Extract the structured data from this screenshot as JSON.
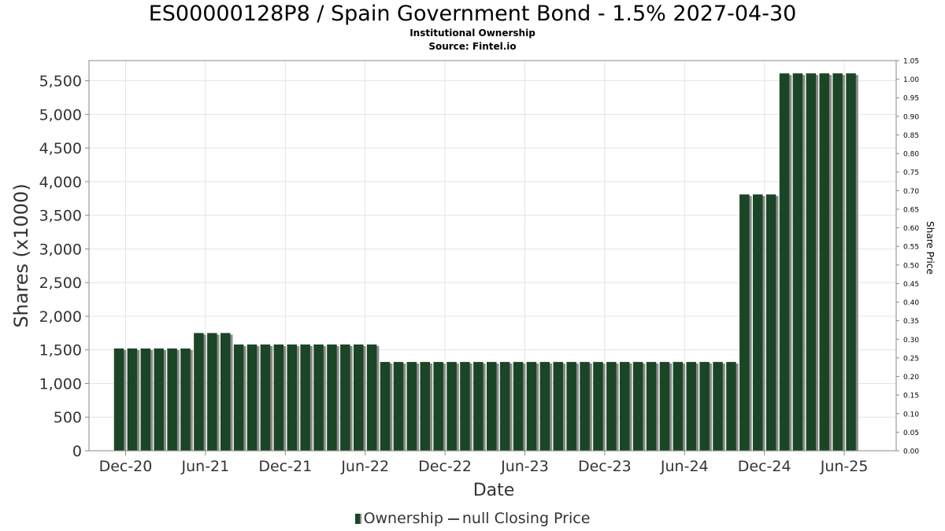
{
  "header": {
    "title": "ES00000128P8 / Spain Government Bond - 1.5% 2027-04-30",
    "subtitle": "Institutional Ownership",
    "source": "Source: Fintel.io"
  },
  "legend": {
    "ownership_label": "Ownership",
    "price_label": "null Closing Price"
  },
  "colors": {
    "bar": "#1a4526",
    "bar_shadow": "#8a8a8a",
    "grid": "#e4e4e4",
    "axis": "#888888"
  },
  "chart_data": {
    "type": "bar",
    "xlabel": "Date",
    "ylabel": "Shares (x1000)",
    "y2label": "Share Price",
    "ylim": [
      0,
      5800
    ],
    "y2lim": [
      0,
      1.05
    ],
    "yticks": [
      0,
      500,
      1000,
      1500,
      2000,
      2500,
      3000,
      3500,
      4000,
      4500,
      5000,
      5500
    ],
    "ytick_labels": [
      "0",
      "500",
      "1,000",
      "1,500",
      "2,000",
      "2,500",
      "3,000",
      "3,500",
      "4,000",
      "4,500",
      "5,000",
      "5,500"
    ],
    "y2ticks": [
      "0.00",
      "0.05",
      "0.10",
      "0.15",
      "0.20",
      "0.25",
      "0.30",
      "0.35",
      "0.40",
      "0.45",
      "0.50",
      "0.55",
      "0.60",
      "0.65",
      "0.70",
      "0.75",
      "0.80",
      "0.85",
      "0.90",
      "0.95",
      "1.00",
      "1.05"
    ],
    "xtick_labels": [
      "Dec-20",
      "Jun-21",
      "Dec-21",
      "Jun-22",
      "Dec-22",
      "Jun-23",
      "Dec-23",
      "Jun-24",
      "Dec-24",
      "Jun-25"
    ],
    "xlim_months": [
      -2.75,
      57.9
    ],
    "grid": true,
    "legend_position": "bottom",
    "series": [
      {
        "name": "Ownership",
        "values": [
          1520,
          1520,
          1520,
          1520,
          1520,
          1520,
          1750,
          1750,
          1750,
          1580,
          1580,
          1580,
          1580,
          1580,
          1580,
          1580,
          1580,
          1580,
          1580,
          1580,
          1320,
          1320,
          1320,
          1320,
          1320,
          1320,
          1320,
          1320,
          1320,
          1320,
          1320,
          1320,
          1320,
          1320,
          1320,
          1320,
          1320,
          1320,
          1320,
          1320,
          1320,
          1320,
          1320,
          1320,
          1320,
          1320,
          1320,
          3810,
          3810,
          3810,
          5610,
          5610,
          5610,
          5610,
          5610,
          5610
        ]
      }
    ]
  }
}
